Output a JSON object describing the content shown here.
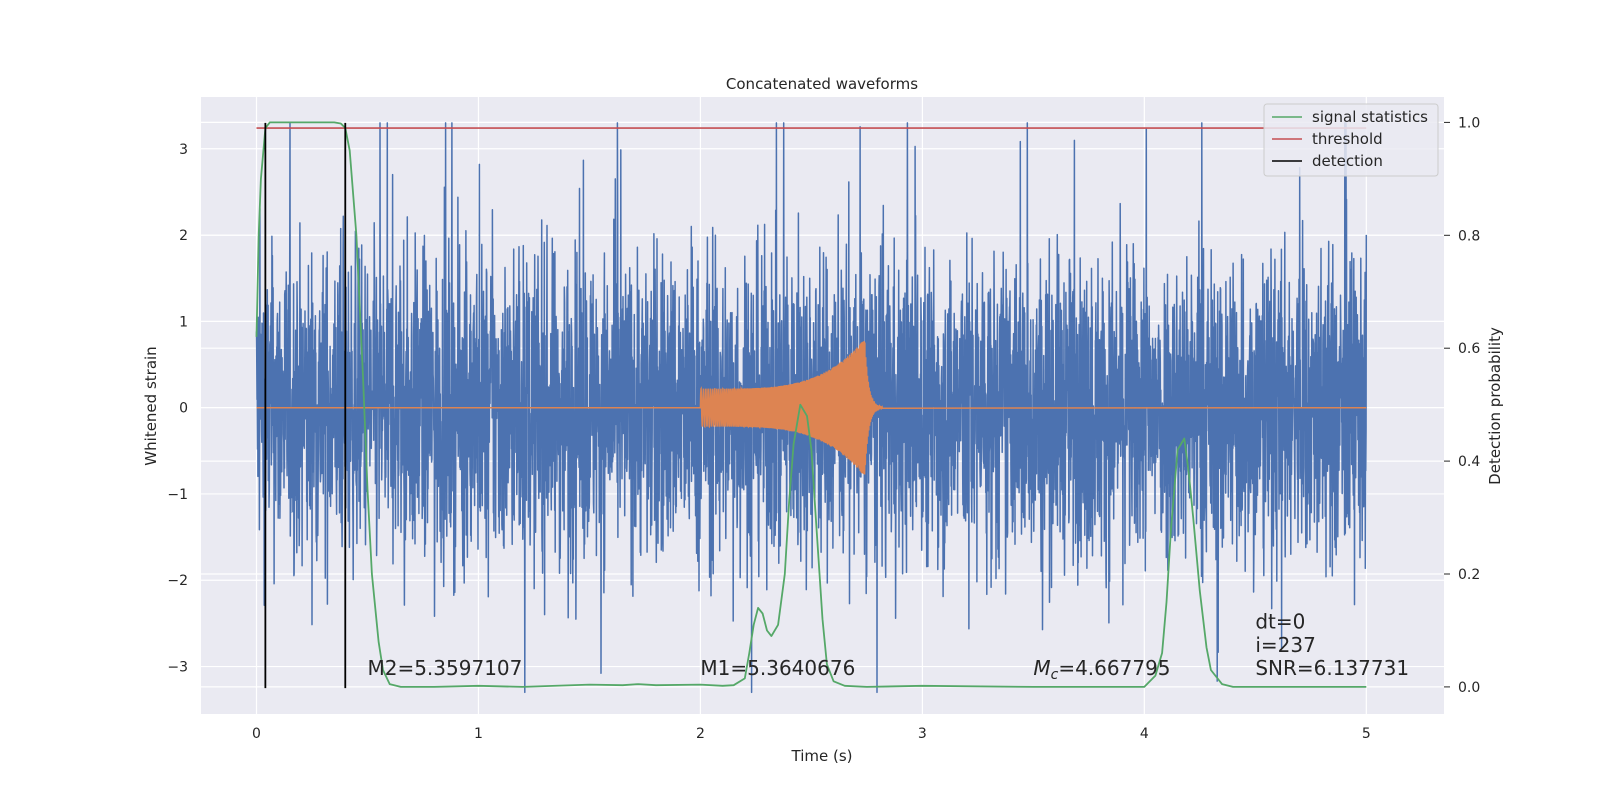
{
  "chart_data": {
    "type": "line",
    "title": "Concatenated waveforms",
    "xlabel": "Time (s)",
    "ylabel": "Whitened strain",
    "ylabel_right": "Detection probability",
    "xlim": [
      -0.25,
      5.35
    ],
    "ylim": [
      -3.55,
      3.6
    ],
    "ylim_right": [
      -0.048,
      1.045
    ],
    "x_ticks": [
      0,
      1,
      2,
      3,
      4,
      5
    ],
    "y_ticks": [
      -3,
      -2,
      -1,
      0,
      1,
      2,
      3
    ],
    "y_ticks_right": [
      0.0,
      0.2,
      0.4,
      0.6,
      0.8,
      1.0
    ],
    "grid": true,
    "legend_position": "top-right",
    "legend": [
      {
        "label": "signal statistics",
        "color": "#55a868"
      },
      {
        "label": "threshold",
        "color": "#c44e52"
      },
      {
        "label": "detection",
        "color": "#000000"
      }
    ],
    "series": [
      {
        "kind": "noise",
        "color": "#4c72b0",
        "x_range": [
          0,
          5
        ],
        "peak_amplitude": 3.3,
        "typical_amplitude": 1.2
      },
      {
        "kind": "chirp",
        "color": "#dd8452",
        "start_time": 2.0,
        "merger_time": 2.74,
        "amplitude_start": 0.22,
        "amplitude_peak": 0.8
      },
      {
        "name": "signal statistics",
        "color": "#55a868",
        "axis": "right",
        "x": [
          0.0,
          0.01,
          0.02,
          0.04,
          0.06,
          0.1,
          0.15,
          0.2,
          0.3,
          0.35,
          0.38,
          0.4,
          0.42,
          0.45,
          0.48,
          0.5,
          0.52,
          0.55,
          0.57,
          0.6,
          0.65,
          0.8,
          1.0,
          1.2,
          1.5,
          1.65,
          1.72,
          1.8,
          2.0,
          2.1,
          2.15,
          2.2,
          2.22,
          2.24,
          2.26,
          2.28,
          2.3,
          2.32,
          2.35,
          2.38,
          2.4,
          2.42,
          2.45,
          2.48,
          2.5,
          2.52,
          2.55,
          2.57,
          2.6,
          2.65,
          2.75,
          3.0,
          3.5,
          4.0,
          4.05,
          4.08,
          4.1,
          4.12,
          4.15,
          4.18,
          4.2,
          4.22,
          4.25,
          4.28,
          4.3,
          4.35,
          4.4,
          4.5,
          5.0
        ],
        "y": [
          0.62,
          0.8,
          0.9,
          0.99,
          1.0,
          1.0,
          1.0,
          1.0,
          1.0,
          1.0,
          0.998,
          0.99,
          0.95,
          0.8,
          0.55,
          0.35,
          0.2,
          0.08,
          0.03,
          0.005,
          0.0,
          0.0,
          0.002,
          0.0,
          0.004,
          0.003,
          0.005,
          0.003,
          0.004,
          0.002,
          0.003,
          0.015,
          0.06,
          0.11,
          0.14,
          0.13,
          0.1,
          0.09,
          0.11,
          0.2,
          0.33,
          0.43,
          0.5,
          0.48,
          0.42,
          0.3,
          0.12,
          0.04,
          0.01,
          0.002,
          0.0,
          0.002,
          0.0,
          0.0,
          0.02,
          0.06,
          0.15,
          0.28,
          0.42,
          0.44,
          0.38,
          0.3,
          0.17,
          0.07,
          0.03,
          0.005,
          0.0,
          0.0,
          0.0
        ]
      },
      {
        "name": "threshold",
        "color": "#c44e52",
        "axis": "right",
        "x": [
          0,
          5
        ],
        "y": [
          0.99,
          0.99
        ]
      },
      {
        "name": "detection",
        "color": "#000000",
        "kind": "vlines",
        "x": [
          0.04,
          0.4
        ],
        "y": [
          -3.25,
          3.3
        ]
      }
    ],
    "annotations": [
      {
        "id": "m2",
        "text": "M2=5.3597107",
        "x": 0.5,
        "y": -3.1
      },
      {
        "id": "m1",
        "text": "M1=5.3640676",
        "x": 2.0,
        "y": -3.1
      },
      {
        "id": "mc",
        "text": "=4.667795",
        "label_symbol": "M",
        "label_subscript": "c",
        "x": 3.5,
        "y": -3.1
      },
      {
        "id": "dt",
        "text": "dt=0",
        "x": 4.5,
        "y": -2.56
      },
      {
        "id": "i",
        "text": "i=237",
        "x": 4.5,
        "y": -2.83
      },
      {
        "id": "snr",
        "text": "SNR=6.137731",
        "x": 4.5,
        "y": -3.1
      }
    ]
  }
}
